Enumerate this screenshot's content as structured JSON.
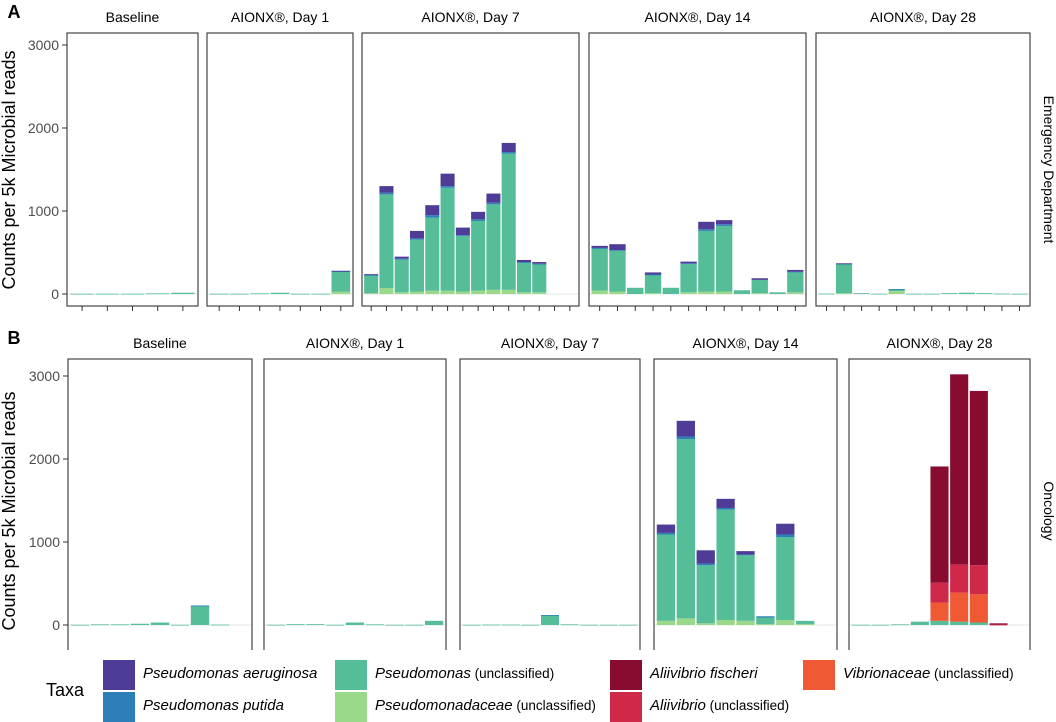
{
  "chart_data": {
    "type": "bar",
    "stacked": true,
    "ylabel": "Counts per 5k Microbial reads",
    "ylim": [
      0,
      3200
    ],
    "yticks": [
      0,
      1000,
      2000,
      3000
    ],
    "taxa_order": [
      "Pseudomonadaceae (unclassified)",
      "Pseudomonas (unclassified)",
      "Pseudomonas putida",
      "Pseudomonas aeruginosa",
      "Vibrionaceae (unclassified)",
      "Aliivibrio (unclassified)",
      "Aliivibrio fischeri"
    ],
    "colors": {
      "Pseudomonas aeruginosa": "#4f3c96",
      "Pseudomonas putida": "#2d7fb8",
      "Pseudomonas (unclassified)": "#55bd97",
      "Pseudomonadaceae (unclassified)": "#9ad98a",
      "Aliivibrio fischeri": "#880c30",
      "Aliivibrio (unclassified)": "#cf2848",
      "Vibrionaceae (unclassified)": "#ef5a34"
    },
    "rows": [
      {
        "label": "A",
        "strip": "Emergency Department",
        "facets": [
          {
            "title": "Baseline",
            "n_samples": 5,
            "bars": [
              {
                "Pseudomonas (unclassified)": 3
              },
              {
                "Pseudomonas (unclassified)": 3
              },
              {
                "Pseudomonas (unclassified)": 3
              },
              {
                "Pseudomonas (unclassified)": 8
              },
              {
                "Pseudomonas (unclassified)": 15
              }
            ]
          },
          {
            "title": "AIONX®, Day 1",
            "n_samples": 7,
            "bars": [
              {
                "Pseudomonas (unclassified)": 3
              },
              {
                "Pseudomonas (unclassified)": 3
              },
              {
                "Pseudomonas (unclassified)": 8
              },
              {
                "Pseudomonas (unclassified)": 15
              },
              {
                "Pseudomonas (unclassified)": 3
              },
              {
                "Pseudomonas (unclassified)": 3
              },
              {
                "Pseudomonadaceae (unclassified)": 30,
                "Pseudomonas (unclassified)": 240,
                "Pseudomonas putida": 5,
                "Pseudomonas aeruginosa": 5
              }
            ]
          },
          {
            "title": "AIONX®, Day 7",
            "n_samples": 14,
            "bars": [
              {
                "Pseudomonadaceae (unclassified)": 10,
                "Pseudomonas (unclassified)": 215,
                "Pseudomonas putida": 5,
                "Pseudomonas aeruginosa": 10
              },
              {
                "Pseudomonadaceae (unclassified)": 70,
                "Pseudomonas (unclassified)": 1130,
                "Pseudomonas putida": 20,
                "Pseudomonas aeruginosa": 80
              },
              {
                "Pseudomonadaceae (unclassified)": 20,
                "Pseudomonas (unclassified)": 395,
                "Pseudomonas putida": 10,
                "Pseudomonas aeruginosa": 25
              },
              {
                "Pseudomonadaceae (unclassified)": 30,
                "Pseudomonas (unclassified)": 625,
                "Pseudomonas putida": 15,
                "Pseudomonas aeruginosa": 90
              },
              {
                "Pseudomonadaceae (unclassified)": 40,
                "Pseudomonas (unclassified)": 880,
                "Pseudomonas putida": 30,
                "Pseudomonas aeruginosa": 120
              },
              {
                "Pseudomonadaceae (unclassified)": 40,
                "Pseudomonas (unclassified)": 1240,
                "Pseudomonas putida": 20,
                "Pseudomonas aeruginosa": 150
              },
              {
                "Pseudomonadaceae (unclassified)": 30,
                "Pseudomonas (unclassified)": 670,
                "Pseudomonas putida": 10,
                "Pseudomonas aeruginosa": 90
              },
              {
                "Pseudomonadaceae (unclassified)": 40,
                "Pseudomonas (unclassified)": 840,
                "Pseudomonas putida": 20,
                "Pseudomonas aeruginosa": 90
              },
              {
                "Pseudomonadaceae (unclassified)": 50,
                "Pseudomonas (unclassified)": 1030,
                "Pseudomonas putida": 20,
                "Pseudomonas aeruginosa": 110
              },
              {
                "Pseudomonadaceae (unclassified)": 50,
                "Pseudomonas (unclassified)": 1640,
                "Pseudomonas putida": 20,
                "Pseudomonas aeruginosa": 110
              },
              {
                "Pseudomonadaceae (unclassified)": 20,
                "Pseudomonas (unclassified)": 360,
                "Pseudomonas putida": 5,
                "Pseudomonas aeruginosa": 25
              },
              {
                "Pseudomonadaceae (unclassified)": 20,
                "Pseudomonas (unclassified)": 340,
                "Pseudomonas putida": 5,
                "Pseudomonas aeruginosa": 20
              }
            ]
          },
          {
            "title": "AIONX®, Day 14",
            "n_samples": 12,
            "bars": [
              {
                "Pseudomonadaceae (unclassified)": 40,
                "Pseudomonas (unclassified)": 510,
                "Pseudomonas putida": 5,
                "Pseudomonas aeruginosa": 25
              },
              {
                "Pseudomonadaceae (unclassified)": 30,
                "Pseudomonas (unclassified)": 490,
                "Pseudomonas putida": 10,
                "Pseudomonas aeruginosa": 70
              },
              {
                "Pseudomonas (unclassified)": 75
              },
              {
                "Pseudomonadaceae (unclassified)": 10,
                "Pseudomonas (unclassified)": 220,
                "Pseudomonas putida": 5,
                "Pseudomonas aeruginosa": 25
              },
              {
                "Pseudomonas (unclassified)": 75
              },
              {
                "Pseudomonadaceae (unclassified)": 20,
                "Pseudomonas (unclassified)": 340,
                "Pseudomonas putida": 10,
                "Pseudomonas aeruginosa": 20
              },
              {
                "Pseudomonadaceae (unclassified)": 30,
                "Pseudomonas (unclassified)": 730,
                "Pseudomonas putida": 20,
                "Pseudomonas aeruginosa": 90
              },
              {
                "Pseudomonadaceae (unclassified)": 30,
                "Pseudomonas (unclassified)": 790,
                "Pseudomonas putida": 20,
                "Pseudomonas aeruginosa": 50
              },
              {
                "Pseudomonas (unclassified)": 45
              },
              {
                "Pseudomonadaceae (unclassified)": 10,
                "Pseudomonas (unclassified)": 160,
                "Pseudomonas aeruginosa": 20
              },
              {
                "Pseudomonas (unclassified)": 20
              },
              {
                "Pseudomonadaceae (unclassified)": 20,
                "Pseudomonas (unclassified)": 240,
                "Pseudomonas putida": 10,
                "Pseudomonas aeruginosa": 20
              }
            ]
          },
          {
            "title": "AIONX®, Day 28",
            "n_samples": 12,
            "bars": [
              {
                "Pseudomonas (unclassified)": 5
              },
              {
                "Pseudomonadaceae (unclassified)": 10,
                "Pseudomonas (unclassified)": 350,
                "Pseudomonas putida": 5,
                "Pseudomonas aeruginosa": 5
              },
              {
                "Pseudomonas (unclassified)": 10
              },
              {
                "Pseudomonas (unclassified)": 3
              },
              {
                "Pseudomonadaceae (unclassified)": 35,
                "Pseudomonas (unclassified)": 20,
                "Pseudomonas putida": 5
              },
              {
                "Pseudomonas (unclassified)": 3
              },
              {
                "Pseudomonas (unclassified)": 3
              },
              {
                "Pseudomonas (unclassified)": 10
              },
              {
                "Pseudomonas (unclassified)": 15
              },
              {
                "Pseudomonas (unclassified)": 10
              },
              {
                "Pseudomonas (unclassified)": 5
              },
              {
                "Pseudomonas (unclassified)": 3
              }
            ]
          }
        ]
      },
      {
        "label": "B",
        "strip": "Oncology",
        "facets": [
          {
            "title": "Baseline",
            "n_samples": 9,
            "bars": [
              {
                "Pseudomonas (unclassified)": 3
              },
              {
                "Pseudomonas (unclassified)": 8
              },
              {
                "Pseudomonas (unclassified)": 8
              },
              {
                "Pseudomonas (unclassified)": 15
              },
              {
                "Pseudomonas (unclassified)": 30
              },
              {
                "Pseudomonas (unclassified)": 3
              },
              {
                "Pseudomonas (unclassified)": 230,
                "Pseudomonas putida": 5
              },
              {
                "Pseudomonas (unclassified)": 5
              }
            ]
          },
          {
            "title": "AIONX®, Day 1",
            "n_samples": 9,
            "bars": [
              {
                "Pseudomonas (unclassified)": 3
              },
              {
                "Pseudomonas (unclassified)": 10
              },
              {
                "Pseudomonas (unclassified)": 10
              },
              {
                "Pseudomonas (unclassified)": 3
              },
              {
                "Pseudomonas (unclassified)": 30
              },
              {
                "Pseudomonas (unclassified)": 8
              },
              {
                "Pseudomonas (unclassified)": 3
              },
              {
                "Pseudomonas (unclassified)": 3
              },
              {
                "Pseudomonas (unclassified)": 50
              }
            ]
          },
          {
            "title": "AIONX®, Day 7",
            "n_samples": 9,
            "bars": [
              {
                "Pseudomonas (unclassified)": 3
              },
              {
                "Pseudomonas (unclassified)": 5
              },
              {
                "Pseudomonas (unclassified)": 5
              },
              {
                "Pseudomonas (unclassified)": 3
              },
              {
                "Pseudomonas (unclassified)": 115,
                "Pseudomonas putida": 5
              },
              {
                "Pseudomonas (unclassified)": 8
              },
              {
                "Pseudomonas (unclassified)": 3
              },
              {
                "Pseudomonas (unclassified)": 3
              },
              {
                "Pseudomonas (unclassified)": 3
              }
            ]
          },
          {
            "title": "AIONX®, Day 14",
            "n_samples": 9,
            "bars": [
              {
                "Pseudomonadaceae (unclassified)": 50,
                "Pseudomonas (unclassified)": 1040,
                "Pseudomonas putida": 20,
                "Pseudomonas aeruginosa": 100
              },
              {
                "Pseudomonadaceae (unclassified)": 80,
                "Pseudomonas (unclassified)": 2160,
                "Pseudomonas putida": 30,
                "Pseudomonas aeruginosa": 190
              },
              {
                "Pseudomonadaceae (unclassified)": 20,
                "Pseudomonas (unclassified)": 700,
                "Pseudomonas putida": 20,
                "Pseudomonas aeruginosa": 160
              },
              {
                "Pseudomonadaceae (unclassified)": 60,
                "Pseudomonas (unclassified)": 1330,
                "Pseudomonas putida": 20,
                "Pseudomonas aeruginosa": 110
              },
              {
                "Pseudomonadaceae (unclassified)": 50,
                "Pseudomonas (unclassified)": 790,
                "Pseudomonas putida": 10,
                "Pseudomonas aeruginosa": 40
              },
              {
                "Pseudomonadaceae (unclassified)": 10,
                "Pseudomonas (unclassified)": 80,
                "Pseudomonas putida": 15
              },
              {
                "Pseudomonadaceae (unclassified)": 60,
                "Pseudomonas (unclassified)": 1000,
                "Pseudomonas putida": 30,
                "Pseudomonas aeruginosa": 130
              },
              {
                "Pseudomonadaceae (unclassified)": 10,
                "Pseudomonas (unclassified)": 40
              }
            ]
          },
          {
            "title": "AIONX®, Day 28",
            "n_samples": 9,
            "bars": [
              {
                "Pseudomonas (unclassified)": 3
              },
              {
                "Pseudomonas (unclassified)": 3
              },
              {
                "Pseudomonas (unclassified)": 8
              },
              {
                "Pseudomonas (unclassified)": 40
              },
              {
                "Vibrionaceae (unclassified)": 220,
                "Aliivibrio (unclassified)": 240,
                "Aliivibrio fischeri": 1400,
                "Pseudomonas (unclassified)": 50
              },
              {
                "Vibrionaceae (unclassified)": 350,
                "Aliivibrio (unclassified)": 340,
                "Aliivibrio fischeri": 2290,
                "Pseudomonas (unclassified)": 40
              },
              {
                "Vibrionaceae (unclassified)": 340,
                "Aliivibrio (unclassified)": 350,
                "Aliivibrio fischeri": 2100,
                "Pseudomonas (unclassified)": 30
              },
              {
                "Aliivibrio fischeri": 15,
                "Aliivibrio (unclassified)": 5
              }
            ]
          }
        ]
      }
    ],
    "legend": {
      "title": "Taxa",
      "items": [
        {
          "taxon": "Pseudomonas aeruginosa",
          "name": "Pseudomonas aeruginosa",
          "suffix": ""
        },
        {
          "taxon": "Pseudomonas putida",
          "name": "Pseudomonas putida",
          "suffix": ""
        },
        {
          "taxon": "Pseudomonas (unclassified)",
          "name": "Pseudomonas",
          "suffix": "(unclassified)"
        },
        {
          "taxon": "Pseudomonadaceae (unclassified)",
          "name": "Pseudomonadaceae",
          "suffix": "(unclassified)"
        },
        {
          "taxon": "Aliivibrio fischeri",
          "name": "Aliivibrio fischeri",
          "suffix": ""
        },
        {
          "taxon": "Aliivibrio (unclassified)",
          "name": "Aliivibrio",
          "suffix": "(unclassified)"
        },
        {
          "taxon": "Vibrionaceae (unclassified)",
          "name": "Vibrionaceae",
          "suffix": "(unclassified)"
        }
      ]
    }
  }
}
